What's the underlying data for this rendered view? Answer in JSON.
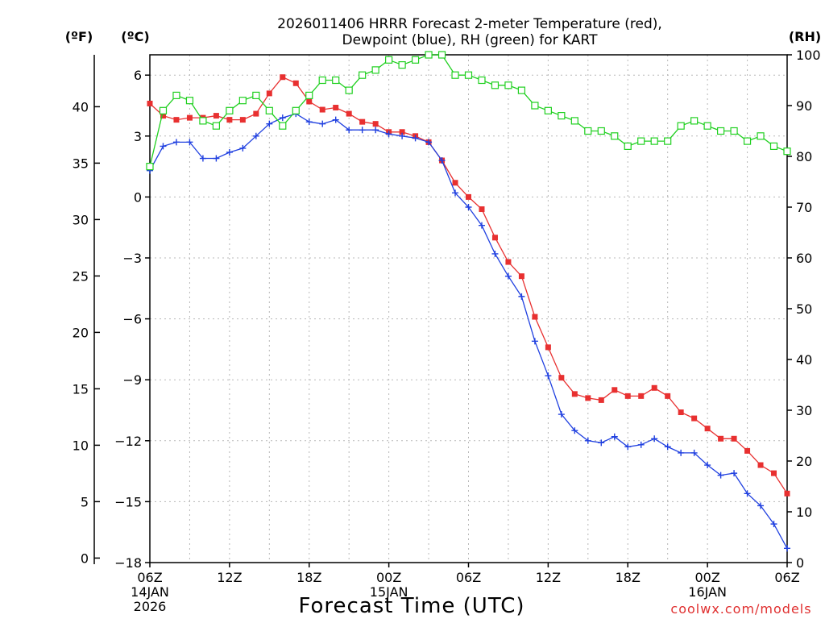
{
  "chart_data": {
    "type": "line",
    "title_line1": "2026011406 HRRR Forecast 2-meter Temperature (red),",
    "title_line2": "Dewpoint (blue), RH (green) for KART",
    "units": {
      "fahrenheit": "(ºF)",
      "celsius": "(ºC)",
      "rh": "(RH)"
    },
    "xlabel": "Forecast Time (UTC)",
    "credit": "coolwx.com/models",
    "x_range_hours": [
      0,
      48
    ],
    "celsius_range": [
      -18,
      7
    ],
    "rh_range": [
      0,
      100
    ],
    "fahrenheit_ticks": [
      "0",
      "5",
      "10",
      "15",
      "20",
      "25",
      "30",
      "35",
      "40"
    ],
    "celsius_ticks": [
      "6",
      "3",
      "0",
      "−3",
      "−6",
      "−9",
      "−12",
      "−15",
      "−18"
    ],
    "rh_ticks": [
      "0",
      "10",
      "20",
      "30",
      "40",
      "50",
      "60",
      "70",
      "80",
      "90",
      "100"
    ],
    "x_ticks": [
      {
        "hour": 0,
        "label": "06Z"
      },
      {
        "hour": 6,
        "label": "12Z"
      },
      {
        "hour": 12,
        "label": "18Z"
      },
      {
        "hour": 18,
        "label": "00Z"
      },
      {
        "hour": 24,
        "label": "06Z"
      },
      {
        "hour": 30,
        "label": "12Z"
      },
      {
        "hour": 36,
        "label": "18Z"
      },
      {
        "hour": 42,
        "label": "00Z"
      },
      {
        "hour": 48,
        "label": "06Z"
      }
    ],
    "date_labels": [
      {
        "hour": 0,
        "date": "14JAN",
        "year": "2026"
      },
      {
        "hour": 18,
        "date": "15JAN",
        "year": ""
      },
      {
        "hour": 42,
        "date": "16JAN",
        "year": ""
      }
    ],
    "series": [
      {
        "name": "2-meter Temperature",
        "unit": "C",
        "color": "#e83030",
        "marker": "filled-square",
        "values": [
          4.6,
          4.0,
          3.8,
          3.9,
          3.9,
          4.0,
          3.8,
          3.8,
          4.1,
          5.1,
          5.9,
          5.6,
          4.7,
          4.3,
          4.4,
          4.1,
          3.7,
          3.6,
          3.2,
          3.2,
          3.0,
          2.7,
          1.8,
          0.7,
          0.0,
          -0.6,
          -2.0,
          -3.2,
          -3.9,
          -5.9,
          -7.4,
          -8.9,
          -9.7,
          -9.9,
          -10.0,
          -9.5,
          -9.8,
          -9.8,
          -9.4,
          -9.8,
          -10.6,
          -10.9,
          -11.4,
          -11.9,
          -11.9,
          -12.5,
          -13.2,
          -13.6,
          -14.6
        ]
      },
      {
        "name": "Dewpoint",
        "unit": "C",
        "color": "#2040e0",
        "marker": "plus",
        "values": [
          1.3,
          2.5,
          2.7,
          2.7,
          1.9,
          1.9,
          2.2,
          2.4,
          3.0,
          3.6,
          3.9,
          4.1,
          3.7,
          3.6,
          3.8,
          3.3,
          3.3,
          3.3,
          3.1,
          3.0,
          2.9,
          2.7,
          1.8,
          0.2,
          -0.5,
          -1.4,
          -2.8,
          -3.9,
          -4.9,
          -7.1,
          -8.8,
          -10.7,
          -11.5,
          -12.0,
          -12.1,
          -11.8,
          -12.3,
          -12.2,
          -11.9,
          -12.3,
          -12.6,
          -12.6,
          -13.2,
          -13.7,
          -13.6,
          -14.6,
          -15.2,
          -16.1,
          -17.3
        ]
      },
      {
        "name": "RH",
        "unit": "%",
        "color": "#20d020",
        "marker": "open-square",
        "values": [
          78,
          89,
          92,
          91,
          87,
          86,
          89,
          91,
          92,
          89,
          86,
          89,
          92,
          95,
          95,
          93,
          96,
          97,
          99,
          98,
          99,
          100,
          100,
          96,
          96,
          95,
          94,
          94,
          93,
          90,
          89,
          88,
          87,
          85,
          85,
          84,
          82,
          83,
          83,
          83,
          86,
          87,
          86,
          85,
          85,
          83,
          84,
          82,
          81
        ]
      }
    ]
  }
}
